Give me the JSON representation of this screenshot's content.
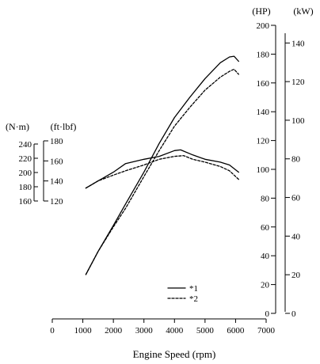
{
  "chart_data": {
    "type": "line",
    "title": "",
    "xlabel": "Engine Speed (rpm)",
    "x_ticks": [
      0,
      1000,
      2000,
      3000,
      4000,
      5000,
      6000,
      7000
    ],
    "xlim": [
      0,
      7000
    ],
    "hp_axis": {
      "unit": "(HP)",
      "ticks": [
        0,
        20,
        40,
        60,
        80,
        100,
        120,
        140,
        160,
        180,
        200
      ],
      "range": [
        0,
        200
      ]
    },
    "kw_axis": {
      "unit": "(kW)",
      "ticks": [
        0,
        20,
        40,
        60,
        80,
        100,
        120,
        140
      ],
      "range": [
        0,
        149.14
      ]
    },
    "nm_axis": {
      "unit": "(N·m)",
      "ticks": [
        160,
        180,
        200,
        220,
        240
      ]
    },
    "ftlbf_axis": {
      "unit": "(ft·lbf)",
      "ticks": [
        120,
        140,
        160,
        180
      ]
    },
    "legend": [
      {
        "label": "*1",
        "style": "solid"
      },
      {
        "label": "*2",
        "style": "dashed"
      }
    ],
    "grid": false,
    "series": [
      {
        "name": "*1",
        "quantity": "power",
        "unit": "HP",
        "style": "solid",
        "x": [
          1100,
          1500,
          2000,
          2400,
          3000,
          3500,
          4000,
          4500,
          5000,
          5500,
          5800,
          5950,
          6100
        ],
        "y": [
          27,
          43,
          61,
          76,
          98,
          118,
          136,
          150,
          163,
          174,
          178,
          178.5,
          175
        ]
      },
      {
        "name": "*2",
        "quantity": "power",
        "unit": "HP",
        "style": "dashed",
        "x": [
          1100,
          1500,
          2000,
          2400,
          3000,
          3500,
          4000,
          4500,
          5000,
          5500,
          5800,
          5950,
          6100
        ],
        "y": [
          27,
          43,
          60,
          73,
          95,
          113,
          130,
          143,
          155,
          164,
          168,
          169.5,
          166
        ]
      },
      {
        "name": "*1",
        "quantity": "torque",
        "unit": "HP-scale",
        "style": "solid",
        "x": [
          1100,
          1500,
          2000,
          2400,
          3000,
          3500,
          4000,
          4200,
          4600,
          5000,
          5500,
          5800,
          6100
        ],
        "y": [
          87,
          92,
          98,
          104,
          107,
          109,
          113,
          113.5,
          110,
          107,
          105,
          103,
          98
        ]
      },
      {
        "name": "*2",
        "quantity": "torque",
        "unit": "HP-scale",
        "style": "dashed",
        "x": [
          1100,
          1500,
          2000,
          2400,
          3000,
          3500,
          4000,
          4300,
          4600,
          5000,
          5500,
          5800,
          6100
        ],
        "y": [
          87,
          92,
          96,
          99,
          103,
          107,
          109,
          109.5,
          107,
          105,
          102,
          99,
          93
        ]
      }
    ]
  }
}
